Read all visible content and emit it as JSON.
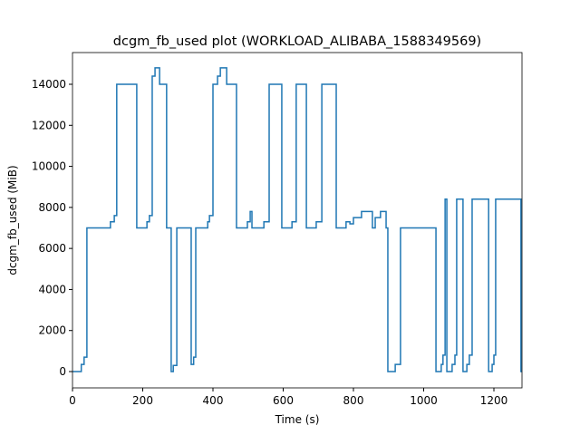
{
  "chart_data": {
    "type": "line",
    "title": "dcgm_fb_used plot (WORKLOAD_ALIBABA_1588349569)",
    "xlabel": "Time (s)",
    "ylabel": "dcgm_fb_used (MiB)",
    "xlim": [
      0,
      1280
    ],
    "ylim": [
      -795,
      15546
    ],
    "xticks": [
      0,
      200,
      400,
      600,
      800,
      1000,
      1200
    ],
    "yticks": [
      0,
      2000,
      4000,
      6000,
      8000,
      10000,
      12000,
      14000
    ],
    "grid": false,
    "series": [
      {
        "color": "#1f77b4",
        "x": [
          0,
          25,
          25,
          33,
          33,
          41,
          41,
          108,
          108,
          119,
          119,
          126,
          126,
          183,
          183,
          212,
          212,
          219,
          219,
          227,
          227,
          235,
          235,
          248,
          248,
          268,
          268,
          281,
          281,
          287,
          287,
          297,
          297,
          338,
          338,
          345,
          345,
          351,
          351,
          385,
          385,
          390,
          390,
          400,
          400,
          413,
          413,
          421,
          421,
          439,
          439,
          467,
          467,
          498,
          498,
          506,
          506,
          511,
          511,
          545,
          545,
          560,
          560,
          596,
          596,
          625,
          625,
          637,
          637,
          666,
          666,
          694,
          694,
          710,
          710,
          751,
          751,
          779,
          779,
          790,
          790,
          800,
          800,
          823,
          823,
          854,
          854,
          862,
          862,
          877,
          877,
          893,
          893,
          898,
          898,
          919,
          919,
          934,
          934,
          1035,
          1035,
          1050,
          1050,
          1055,
          1055,
          1061,
          1061,
          1066,
          1066,
          1081,
          1081,
          1089,
          1089,
          1094,
          1094,
          1112,
          1112,
          1123,
          1123,
          1130,
          1130,
          1138,
          1138,
          1185,
          1185,
          1195,
          1195,
          1200,
          1200,
          1205,
          1205,
          1277,
          1277,
          1280
        ],
        "values": [
          0,
          0,
          350,
          350,
          700,
          700,
          7000,
          7000,
          7300,
          7300,
          7600,
          7600,
          14000,
          14000,
          7000,
          7000,
          7300,
          7300,
          7600,
          7600,
          14400,
          14400,
          14800,
          14800,
          14000,
          14000,
          7000,
          7000,
          0,
          0,
          300,
          300,
          7000,
          7000,
          350,
          350,
          700,
          700,
          7000,
          7000,
          7300,
          7300,
          7600,
          7600,
          14000,
          14000,
          14400,
          14400,
          14800,
          14800,
          14000,
          14000,
          7000,
          7000,
          7300,
          7300,
          7800,
          7800,
          7000,
          7000,
          7300,
          7300,
          14000,
          14000,
          7000,
          7000,
          7300,
          7300,
          14000,
          14000,
          7000,
          7000,
          7300,
          7300,
          14000,
          14000,
          7000,
          7000,
          7300,
          7300,
          7200,
          7200,
          7500,
          7500,
          7800,
          7800,
          7000,
          7000,
          7500,
          7500,
          7800,
          7800,
          7000,
          7000,
          0,
          0,
          350,
          350,
          7000,
          7000,
          0,
          0,
          350,
          350,
          800,
          800,
          8400,
          8400,
          0,
          0,
          350,
          350,
          800,
          800,
          8400,
          8400,
          0,
          0,
          350,
          350,
          800,
          800,
          8400,
          8400,
          0,
          0,
          350,
          350,
          800,
          800,
          8400,
          8400,
          0,
          0
        ]
      }
    ]
  }
}
